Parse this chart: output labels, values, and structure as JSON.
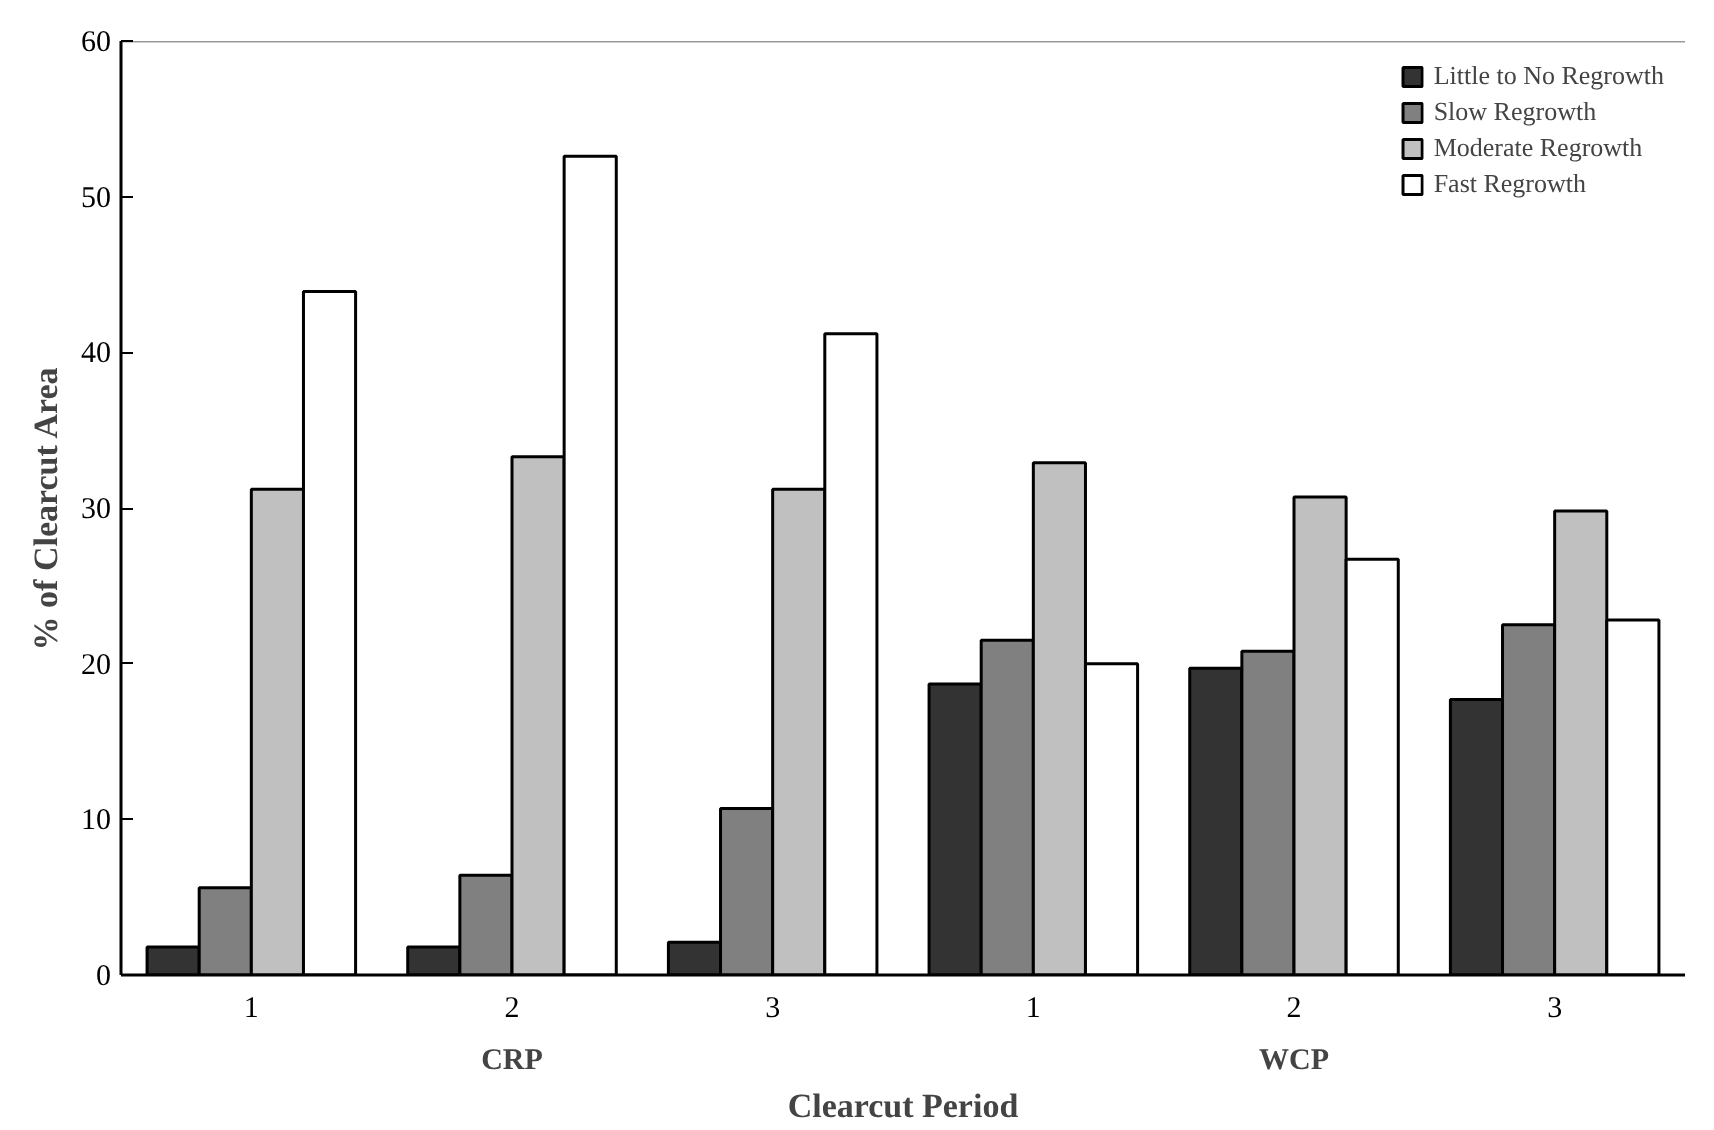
{
  "chart_data": {
    "type": "bar",
    "xlabel": "Clearcut Period",
    "ylabel": "% of Clearcut Area",
    "categories": [
      "1",
      "2",
      "3",
      "1",
      "2",
      "3"
    ],
    "annotations": [
      "CRP",
      "WCP"
    ],
    "series": [
      {
        "name": "Little to No Regrowth",
        "color": "#333333",
        "values": [
          1.8,
          1.8,
          2.1,
          18.7,
          19.7,
          17.7
        ]
      },
      {
        "name": "Slow Regrowth",
        "color": "#808080",
        "values": [
          5.6,
          6.4,
          10.7,
          21.5,
          20.8,
          22.5
        ]
      },
      {
        "name": "Moderate Regrowth",
        "color": "#c0c0c0",
        "values": [
          31.2,
          33.3,
          31.2,
          32.9,
          30.7,
          29.8
        ]
      },
      {
        "name": "Fast Regrowth",
        "color": "#ffffff",
        "values": [
          43.9,
          52.6,
          41.2,
          20.0,
          26.7,
          22.8
        ]
      }
    ],
    "ylim": [
      0,
      60
    ],
    "yticks": [
      0,
      10,
      20,
      30,
      40,
      50,
      60
    ],
    "grid": false,
    "legend": "top right"
  }
}
